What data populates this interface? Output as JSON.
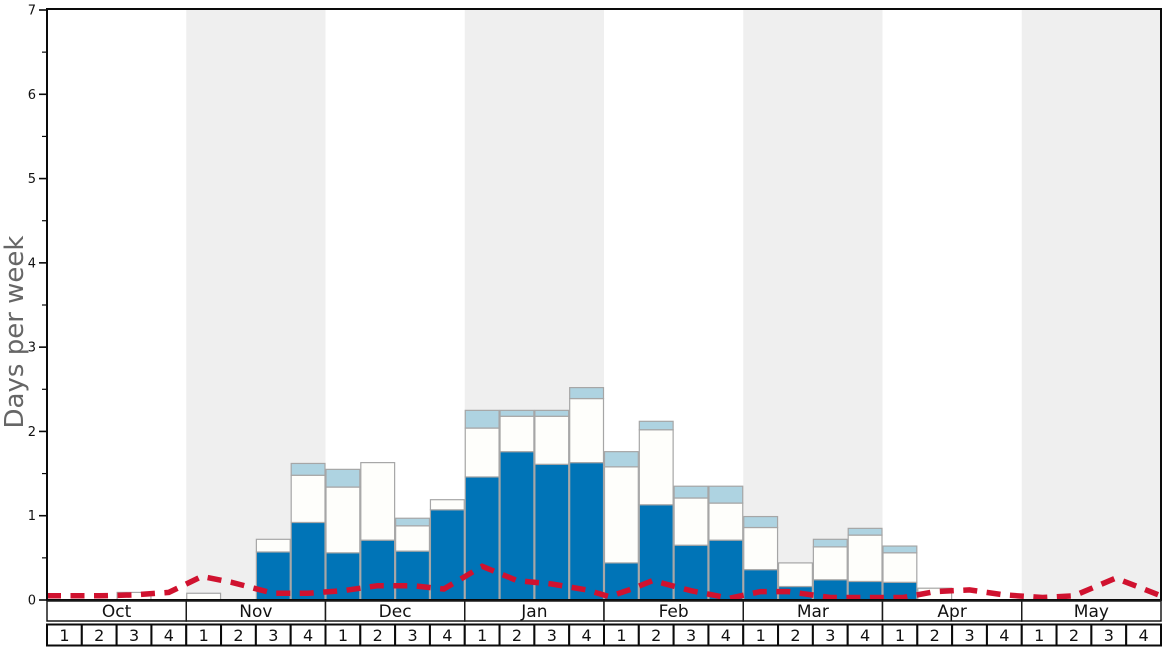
{
  "chart": {
    "y_axis_label": "Days per week",
    "colors": {
      "bar_dark_blue": "#0074b7",
      "bar_white": "#fefefb",
      "bar_light_blue": "#aed3e1",
      "bar_border": "#a6a6a6",
      "line_red": "#d0122f",
      "month_band_gray": "#efefef",
      "frame_black": "#0a0a0a",
      "row_border": "#1a1a1a",
      "y_label_gray": "#666666"
    },
    "months": [
      {
        "label": "Oct",
        "shaded": false,
        "weeks": [
          "1",
          "2",
          "3",
          "4"
        ]
      },
      {
        "label": "Nov",
        "shaded": true,
        "weeks": [
          "1",
          "2",
          "3",
          "4"
        ]
      },
      {
        "label": "Dec",
        "shaded": false,
        "weeks": [
          "1",
          "2",
          "3",
          "4"
        ]
      },
      {
        "label": "Jan",
        "shaded": true,
        "weeks": [
          "1",
          "2",
          "3",
          "4"
        ]
      },
      {
        "label": "Feb",
        "shaded": false,
        "weeks": [
          "1",
          "2",
          "3",
          "4"
        ]
      },
      {
        "label": "Mar",
        "shaded": true,
        "weeks": [
          "1",
          "2",
          "3",
          "4"
        ]
      },
      {
        "label": "Apr",
        "shaded": false,
        "weeks": [
          "1",
          "2",
          "3",
          "4"
        ]
      },
      {
        "label": "May",
        "shaded": true,
        "weeks": [
          "1",
          "2",
          "3",
          "4"
        ]
      }
    ]
  },
  "chart_data": {
    "type": "bar",
    "subtype": "stacked-bars-with-dashed-line-overlay",
    "title": "",
    "xlabel": "",
    "ylabel": "Days per week",
    "ylim": [
      0,
      7
    ],
    "y_major_tick": 1,
    "y_minor_tick": 0.5,
    "grid": false,
    "legend": "none",
    "categories": [
      "Oct w1",
      "Oct w2",
      "Oct w3",
      "Oct w4",
      "Nov w1",
      "Nov w2",
      "Nov w3",
      "Nov w4",
      "Dec w1",
      "Dec w2",
      "Dec w3",
      "Dec w4",
      "Jan w1",
      "Jan w2",
      "Jan w3",
      "Jan w4",
      "Feb w1",
      "Feb w2",
      "Feb w3",
      "Feb w4",
      "Mar w1",
      "Mar w2",
      "Mar w3",
      "Mar w4",
      "Apr w1",
      "Apr w2",
      "Apr w3",
      "Apr w4",
      "May w1",
      "May w2",
      "May w3",
      "May w4"
    ],
    "series": [
      {
        "name": "dark-blue-bar-segment",
        "role": "stacked-bar-bottom",
        "color": "#0074b7",
        "values": [
          0,
          0,
          0,
          0,
          0,
          0,
          0.57,
          0.92,
          0.56,
          0.71,
          0.58,
          1.07,
          1.46,
          1.76,
          1.61,
          1.63,
          0.44,
          1.13,
          0.65,
          0.71,
          0.36,
          0.16,
          0.24,
          0.22,
          0.21,
          0,
          0,
          0,
          0,
          0,
          0,
          0
        ]
      },
      {
        "name": "white-bar-segment",
        "role": "stacked-bar-middle",
        "color": "#fefefb",
        "values": [
          0,
          0,
          0.09,
          0,
          0.08,
          0,
          0.15,
          0.56,
          0.78,
          0.92,
          0.3,
          0.12,
          0.58,
          0.42,
          0.57,
          0.76,
          1.14,
          0.89,
          0.56,
          0.44,
          0.5,
          0.28,
          0.39,
          0.55,
          0.35,
          0.14,
          0,
          0,
          0,
          0,
          0,
          0
        ]
      },
      {
        "name": "light-blue-bar-segment",
        "role": "stacked-bar-top",
        "color": "#aed3e1",
        "values": [
          0,
          0,
          0,
          0,
          0,
          0,
          0,
          0.14,
          0.21,
          0,
          0.09,
          0,
          0.21,
          0.07,
          0.07,
          0.13,
          0.18,
          0.1,
          0.14,
          0.2,
          0.13,
          0,
          0.09,
          0.08,
          0.08,
          0,
          0,
          0,
          0,
          0,
          0,
          0
        ]
      },
      {
        "name": "red-dashed-line",
        "role": "line",
        "color": "#d0122f",
        "dashed": true,
        "values": [
          0.05,
          0.05,
          0.06,
          0.09,
          0.28,
          0.2,
          0.08,
          0.08,
          0.11,
          0.17,
          0.17,
          0.13,
          0.4,
          0.23,
          0.19,
          0.12,
          0.13,
          0.23,
          0.11,
          0.03,
          0.1,
          0.1,
          0.03,
          0.03,
          0.03,
          0.1,
          0.12,
          0.06,
          0.03,
          0.05,
          0.26,
          0.13
        ]
      }
    ],
    "line_path_week_units": [
      [
        0,
        0.05
      ],
      [
        0.5,
        0.05
      ],
      [
        1.5,
        0.05
      ],
      [
        2.5,
        0.06
      ],
      [
        3.5,
        0.09
      ],
      [
        4.45,
        0.28
      ],
      [
        5.3,
        0.21
      ],
      [
        6.5,
        0.08
      ],
      [
        7.5,
        0.08
      ],
      [
        8.5,
        0.11
      ],
      [
        9.5,
        0.17
      ],
      [
        10.5,
        0.17
      ],
      [
        11.4,
        0.13
      ],
      [
        12.5,
        0.4
      ],
      [
        13.5,
        0.23
      ],
      [
        14.5,
        0.19
      ],
      [
        15.5,
        0.12
      ],
      [
        16.15,
        0.04
      ],
      [
        16.8,
        0.13
      ],
      [
        17.4,
        0.23
      ],
      [
        18.5,
        0.11
      ],
      [
        19.6,
        0.02
      ],
      [
        20.5,
        0.1
      ],
      [
        21.3,
        0.1
      ],
      [
        22.5,
        0.03
      ],
      [
        23.5,
        0.03
      ],
      [
        24.6,
        0.03
      ],
      [
        25.5,
        0.1
      ],
      [
        26.5,
        0.12
      ],
      [
        27.5,
        0.06
      ],
      [
        28.6,
        0.03
      ],
      [
        29.5,
        0.05
      ],
      [
        30.7,
        0.26
      ],
      [
        31.5,
        0.13
      ],
      [
        32,
        0.05
      ]
    ]
  }
}
